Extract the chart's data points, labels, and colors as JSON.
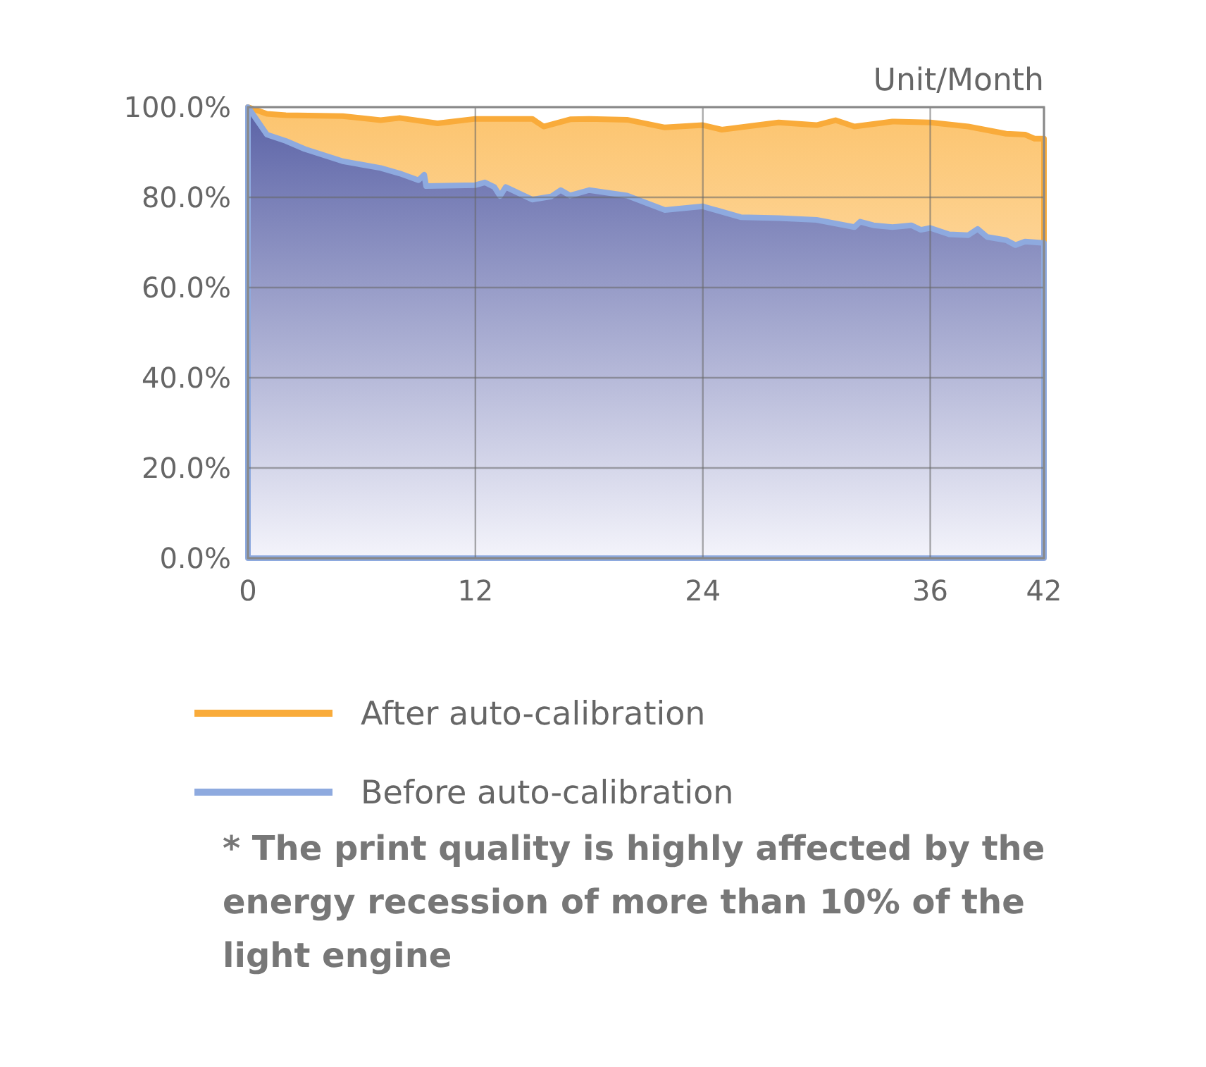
{
  "chart_data": {
    "type": "area",
    "xlabel": "Unit/Month",
    "xlim": [
      0,
      42
    ],
    "xticks": [
      0,
      12,
      24,
      36,
      42
    ],
    "ylim": [
      0,
      100
    ],
    "yticks": [
      {
        "value": 0,
        "label": "0.0%"
      },
      {
        "value": 20,
        "label": "20.0%"
      },
      {
        "value": 40,
        "label": "40.0%"
      },
      {
        "value": 60,
        "label": "60.0%"
      },
      {
        "value": 80,
        "label": "80.0%"
      },
      {
        "value": 100,
        "label": "100.0%"
      }
    ],
    "grid": true,
    "legend": "bottom",
    "series": [
      {
        "name": "After auto-calibration",
        "color": "#f9ab3a",
        "x": [
          0,
          1,
          2,
          5,
          7,
          8,
          10,
          12,
          15,
          15.6,
          17,
          18,
          20,
          22,
          24,
          25,
          28,
          30,
          31,
          32,
          34,
          36,
          38,
          40,
          41,
          41.5,
          42
        ],
        "values": [
          100,
          98.5,
          98.2,
          98,
          97.1,
          97.6,
          96.4,
          97.4,
          97.4,
          95.7,
          97.3,
          97.4,
          97.2,
          95.5,
          96,
          95,
          96.6,
          96,
          97.1,
          95.7,
          96.8,
          96.6,
          95.7,
          94.1,
          93.9,
          93,
          93
        ]
      },
      {
        "name": "Before auto-calibration",
        "color": "#8eaadf",
        "x": [
          0,
          1,
          2,
          3,
          5,
          7,
          8,
          9,
          9.3,
          9.4,
          12,
          12.5,
          13,
          13.3,
          13.6,
          15,
          16,
          16.5,
          17,
          18,
          20,
          22,
          24,
          26,
          28,
          30,
          32,
          32.3,
          33,
          34,
          35,
          35.5,
          36,
          37,
          38,
          38.5,
          39,
          40,
          40.5,
          41,
          42
        ],
        "values": [
          100,
          93.9,
          92.5,
          90.7,
          88,
          86.5,
          85.3,
          83.8,
          85,
          82.5,
          82.7,
          83.3,
          82.3,
          80.3,
          82.3,
          79.5,
          80.2,
          81.6,
          80.4,
          81.6,
          80.4,
          77.2,
          78,
          75.6,
          75.4,
          75,
          73.4,
          74.6,
          73.8,
          73.4,
          73.8,
          72.8,
          73.2,
          71.8,
          71.6,
          73,
          71.2,
          70.5,
          69.4,
          70.2,
          69.9
        ]
      }
    ],
    "annotations": [
      "* The print quality is highly affected by the energy recession of more than 10% of the light engine"
    ]
  }
}
